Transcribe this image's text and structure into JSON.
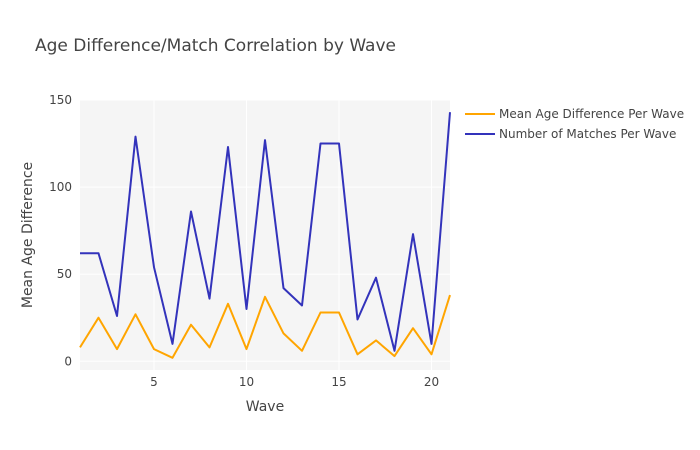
{
  "chart_data": {
    "type": "line",
    "title": "Age Difference/Match Correlation by Wave",
    "xlabel": "Wave",
    "ylabel": "Mean Age Difference",
    "xlim": [
      1,
      21
    ],
    "ylim": [
      -5,
      150
    ],
    "x_ticks": [
      5,
      10,
      15,
      20
    ],
    "y_ticks": [
      0,
      50,
      100,
      150
    ],
    "x": [
      1,
      2,
      3,
      4,
      5,
      6,
      7,
      8,
      9,
      10,
      11,
      12,
      13,
      14,
      15,
      16,
      17,
      18,
      19,
      20,
      21
    ],
    "series": [
      {
        "name": "Mean Age Difference Per Wave",
        "color": "#ffa500",
        "values": [
          8,
          25,
          7,
          27,
          7,
          2,
          21,
          8,
          33,
          7,
          37,
          16,
          6,
          28,
          28,
          4,
          12,
          3,
          19,
          4,
          38
        ]
      },
      {
        "name": "Number of Matches Per Wave",
        "color": "#3333bb",
        "values": [
          62,
          62,
          26,
          129,
          54,
          10,
          86,
          36,
          123,
          30,
          127,
          42,
          32,
          125,
          125,
          24,
          48,
          6,
          73,
          10,
          143
        ]
      }
    ],
    "grid": true,
    "legend_position": "top-right"
  }
}
